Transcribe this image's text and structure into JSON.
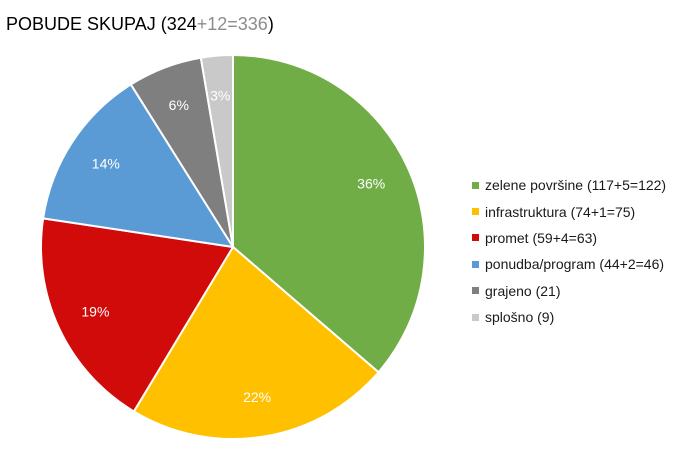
{
  "title": {
    "main": "POBUDE SKUPAJ (324",
    "extra": "+12=336",
    "close": ")"
  },
  "chart_data": {
    "type": "pie",
    "title": "POBUDE SKUPAJ (324+12=336)",
    "start_angle_deg": 0,
    "direction": "clockwise",
    "slices": [
      {
        "legend": "zelene površine (117+5=122)",
        "value": 122,
        "label": "36%",
        "color": "#70ad47"
      },
      {
        "legend": "infrastruktura (74+1=75)",
        "value": 75,
        "label": "22%",
        "color": "#ffc000"
      },
      {
        "legend": "promet (59+4=63)",
        "value": 63,
        "label": "19%",
        "color": "#d10a0a"
      },
      {
        "legend": "ponudba/program (44+2=46)",
        "value": 46,
        "label": "14%",
        "color": "#5b9bd5"
      },
      {
        "legend": "grajeno (21)",
        "value": 21,
        "label": "6%",
        "color": "#7f7f7f"
      },
      {
        "legend": "splošno (9)",
        "value": 9,
        "label": "3%",
        "color": "#c9c9c9"
      }
    ],
    "legend_position": "right"
  }
}
